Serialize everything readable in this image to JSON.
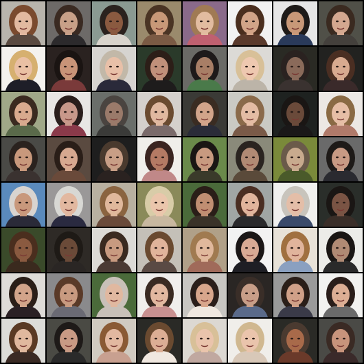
{
  "grid": {
    "rows": 8,
    "cols": 8,
    "background_color": "#000000",
    "tiles": [
      {
        "bg": "#b8b4ac",
        "hair": "#7a4a2e",
        "skin": "#e2b9a0",
        "shirt": "#5a4a40"
      },
      {
        "bg": "#6d6a68",
        "hair": "#3a2a22",
        "skin": "#c8a088",
        "shirt": "#2c2a2c"
      },
      {
        "bg": "#8a9a92",
        "hair": "#2a221e",
        "skin": "#8a5a40",
        "shirt": "#d8d4cc"
      },
      {
        "bg": "#9a8a6c",
        "hair": "#4a3424",
        "skin": "#c89878",
        "shirt": "#7a5a44"
      },
      {
        "bg": "#8a6a8a",
        "hair": "#a07a54",
        "skin": "#e2bca0",
        "shirt": "#c06070"
      },
      {
        "bg": "#f2f2f2",
        "hair": "#4a2e1e",
        "skin": "#d2a488",
        "shirt": "#5a3a2c"
      },
      {
        "bg": "#e6e6e6",
        "hair": "#1e1a18",
        "skin": "#c89878",
        "shirt": "#2a3a5a"
      },
      {
        "bg": "#505048",
        "hair": "#3a2a20",
        "skin": "#d4a890",
        "shirt": "#44403c"
      },
      {
        "bg": "#f4f2ee",
        "hair": "#d6b070",
        "skin": "#eac0a4",
        "shirt": "#1e1e28"
      },
      {
        "bg": "#2a2220",
        "hair": "#1a1412",
        "skin": "#c89478",
        "shirt": "#7a3a3a"
      },
      {
        "bg": "#d6d4d0",
        "hair": "#c2b8a8",
        "skin": "#e8c0a8",
        "shirt": "#2a2a3a"
      },
      {
        "bg": "#2a3a2a",
        "hair": "#2c1e18",
        "skin": "#c0907a",
        "shirt": "#1e1c1c"
      },
      {
        "bg": "#6a6a66",
        "hair": "#1e1a1a",
        "skin": "#a87e66",
        "shirt": "#4a7a4a"
      },
      {
        "bg": "#dcdad6",
        "hair": "#d8c098",
        "skin": "#eec8b0",
        "shirt": "#bcb4a8"
      },
      {
        "bg": "#2a2a24",
        "hair": "#2a2220",
        "skin": "#8a6a5a",
        "shirt": "#3a3230"
      },
      {
        "bg": "#222220",
        "hair": "#4a2e22",
        "skin": "#d8aa90",
        "shirt": "#3a2a2a"
      },
      {
        "bg": "#a0a888",
        "hair": "#3a2a20",
        "skin": "#d8aa8e",
        "shirt": "#5a6a4a"
      },
      {
        "bg": "#e8e6e4",
        "hair": "#2a1e1c",
        "skin": "#c8988a",
        "shirt": "#8a3a4a"
      },
      {
        "bg": "#6a6e6a",
        "hair": "#4a4440",
        "skin": "#9a7a6a",
        "shirt": "#3a3a38"
      },
      {
        "bg": "#d4d0cc",
        "hair": "#6a4a30",
        "skin": "#e0b8a0",
        "shirt": "#7a6a6a"
      },
      {
        "bg": "#3a3a36",
        "hair": "#3a2c22",
        "skin": "#d2a48a",
        "shirt": "#2a2c38"
      },
      {
        "bg": "#cacac4",
        "hair": "#8a6a4a",
        "skin": "#e4bca4",
        "shirt": "#7a5a48"
      },
      {
        "bg": "#1e2220",
        "hair": "#1a1614",
        "skin": "#6a4a3a",
        "shirt": "#1a1818"
      },
      {
        "bg": "#ece8e4",
        "hair": "#8a6a44",
        "skin": "#e6bea6",
        "shirt": "#b07a6a"
      },
      {
        "bg": "#4a4a46",
        "hair": "#2a221e",
        "skin": "#c8987c",
        "shirt": "#3a3230"
      },
      {
        "bg": "#5a4a40",
        "hair": "#2a1e18",
        "skin": "#d6a890",
        "shirt": "#6a4a3a"
      },
      {
        "bg": "#1e1e1e",
        "hair": "#4a3a2e",
        "skin": "#c89e86",
        "shirt": "#2a2220"
      },
      {
        "bg": "#f0eeea",
        "hair": "#3a2420",
        "skin": "#b47a64",
        "shirt": "#c08888"
      },
      {
        "bg": "#6a8a4a",
        "hair": "#1a1614",
        "skin": "#c89a80",
        "shirt": "#3a3a2a"
      },
      {
        "bg": "#8a8a7a",
        "hair": "#2a2420",
        "skin": "#b08a74",
        "shirt": "#5a4a3a"
      },
      {
        "bg": "#7a8a3a",
        "hair": "#6a5a4a",
        "skin": "#c8aa8e",
        "shirt": "#4a5a2a"
      },
      {
        "bg": "#6a6a6a",
        "hair": "#1e1a18",
        "skin": "#c89a84",
        "shirt": "#2a2a30"
      },
      {
        "bg": "#5a8abc",
        "hair": "#d8d4d0",
        "skin": "#c8987c",
        "shirt": "#2a2a38"
      },
      {
        "bg": "#9a9898",
        "hair": "#d8d8d4",
        "skin": "#e2b8a0",
        "shirt": "#2a2a40"
      },
      {
        "bg": "#b8b0a0",
        "hair": "#8a6440",
        "skin": "#e0b89c",
        "shirt": "#6a4a3a"
      },
      {
        "bg": "#8a8a5a",
        "hair": "#d8cca8",
        "skin": "#eac6ac",
        "shirt": "#c8b8a0"
      },
      {
        "bg": "#4a6a3a",
        "hair": "#2a1e18",
        "skin": "#c08e72",
        "shirt": "#3a3228"
      },
      {
        "bg": "#a0a6a4",
        "hair": "#4a2e22",
        "skin": "#e0b49c",
        "shirt": "#2a2a2c"
      },
      {
        "bg": "#f0f0ee",
        "hair": "#c8c4bc",
        "skin": "#e4bea8",
        "shirt": "#3a4a6a"
      },
      {
        "bg": "#2a2e2a",
        "hair": "#1a1614",
        "skin": "#7a5444",
        "shirt": "#3a2e28"
      },
      {
        "bg": "#3a4a2a",
        "hair": "#4a2e1e",
        "skin": "#8a5a40",
        "shirt": "#3a2a1e"
      },
      {
        "bg": "#2e2a26",
        "hair": "#1e1a16",
        "skin": "#6a4a38",
        "shirt": "#2a2624"
      },
      {
        "bg": "#dcdad6",
        "hair": "#3a2a20",
        "skin": "#c89a80",
        "shirt": "#4a3a34"
      },
      {
        "bg": "#c4c0b8",
        "hair": "#6a4a30",
        "skin": "#e0b49a",
        "shirt": "#5a4a44"
      },
      {
        "bg": "#b0a088",
        "hair": "#a07a50",
        "skin": "#e0b89c",
        "shirt": "#a06a5a"
      },
      {
        "bg": "#f2f2f2",
        "hair": "#1a1616",
        "skin": "#d8aa94",
        "shirt": "#1e1e24"
      },
      {
        "bg": "#e8e2d8",
        "hair": "#a07040",
        "skin": "#e0b49c",
        "shirt": "#8aa0c0"
      },
      {
        "bg": "#ecece8",
        "hair": "#1a1614",
        "skin": "#b08a74",
        "shirt": "#2a2a2a"
      },
      {
        "bg": "#dedcd8",
        "hair": "#2a1e18",
        "skin": "#d2a48a",
        "shirt": "#2a2024"
      },
      {
        "bg": "#8a8a8c",
        "hair": "#5a3a28",
        "skin": "#c89a80",
        "shirt": "#6a6a74"
      },
      {
        "bg": "#4a6a3a",
        "hair": "#c8c0b8",
        "skin": "#e0b8a0",
        "shirt": "#c8c0b8"
      },
      {
        "bg": "#f0eeec",
        "hair": "#3a2a22",
        "skin": "#e2b8a0",
        "shirt": "#c89090"
      },
      {
        "bg": "#c8c6c2",
        "hair": "#2a1e1a",
        "skin": "#d8a68c",
        "shirt": "#f0e8e0"
      },
      {
        "bg": "#2a2624",
        "hair": "#3a2e28",
        "skin": "#c89e88",
        "shirt": "#5a6a8a"
      },
      {
        "bg": "#9a9a9a",
        "hair": "#2a1e18",
        "skin": "#d0a088",
        "shirt": "#3a3a48"
      },
      {
        "bg": "#f2f2f0",
        "hair": "#2a1e1a",
        "skin": "#dcae94",
        "shirt": "#6a6a6a"
      },
      {
        "bg": "#dcdcd8",
        "hair": "#5a3a24",
        "skin": "#e0b89e",
        "shirt": "#3a2a24"
      },
      {
        "bg": "#4a4a44",
        "hair": "#1e1a18",
        "skin": "#c89a84",
        "shirt": "#2a2a2a"
      },
      {
        "bg": "#d0cac0",
        "hair": "#8a5a34",
        "skin": "#e2b8a0",
        "shirt": "#c8a090"
      },
      {
        "bg": "#2a2a26",
        "hair": "#6a4a30",
        "skin": "#dcae94",
        "shirt": "#f0e8e0"
      },
      {
        "bg": "#dcd8d2",
        "hair": "#d8c098",
        "skin": "#eac4ac",
        "shirt": "#c0a8a0"
      },
      {
        "bg": "#f0eeea",
        "hair": "#d0b890",
        "skin": "#eac4ac",
        "shirt": "#d8c8b8"
      },
      {
        "bg": "#2a2a26",
        "hair": "#4a3a30",
        "skin": "#a86a4a",
        "shirt": "#6a3a2a"
      },
      {
        "bg": "#4a4a46",
        "hair": "#3a2a24",
        "skin": "#c8947c",
        "shirt": "#3a2a2a"
      }
    ]
  }
}
